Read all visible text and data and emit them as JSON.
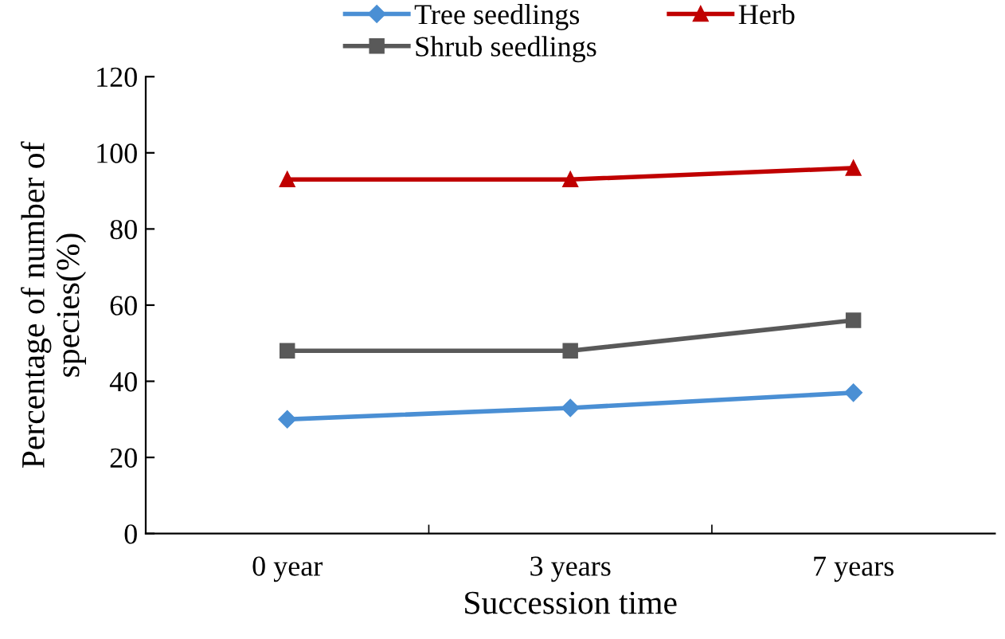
{
  "chart_data": {
    "type": "line",
    "xlabel": "Succession time",
    "ylabel": "Percentage of number of\nspecies(%)",
    "categories": [
      "0 year",
      "3 years",
      "7 years"
    ],
    "series": [
      {
        "name": "Tree seedlings",
        "color": "#4a8fd4",
        "marker": "diamond",
        "values": [
          30,
          33,
          37
        ]
      },
      {
        "name": "Shrub seedlings",
        "color": "#595959",
        "marker": "square",
        "values": [
          48,
          48,
          56
        ]
      },
      {
        "name": "Herb",
        "color": "#c00000",
        "marker": "triangle",
        "values": [
          93,
          93,
          96
        ]
      }
    ],
    "ylim": [
      0,
      120
    ],
    "yticks": [
      0,
      20,
      40,
      60,
      80,
      100,
      120
    ],
    "grid": false,
    "legend": "top",
    "line_style": "solid"
  }
}
